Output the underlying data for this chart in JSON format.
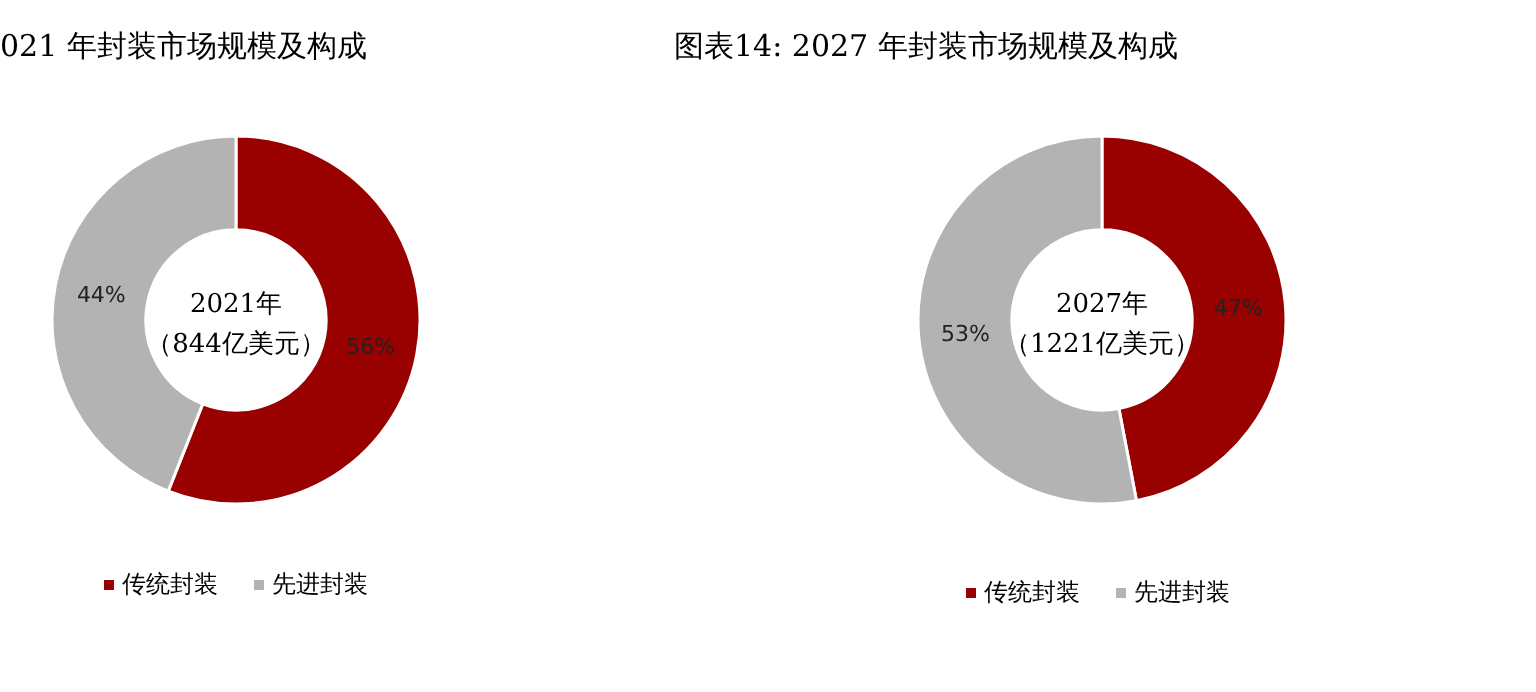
{
  "chart_data": [
    {
      "type": "donut",
      "title": "021 年封装市场规模及构成",
      "categories": [
        "传统封装",
        "先进封装"
      ],
      "values": [
        56,
        44
      ],
      "value_labels": [
        "56%",
        "44%"
      ],
      "colors": [
        "#990000",
        "#b3b3b3"
      ],
      "legend": "bottom",
      "annotations": [
        "2021年",
        "（844亿美元）"
      ]
    },
    {
      "type": "donut",
      "title": "图表14:  2027 年封装市场规模及构成",
      "categories": [
        "传统封装",
        "先进封装"
      ],
      "values": [
        47,
        53
      ],
      "value_labels": [
        "47%",
        "53%"
      ],
      "colors": [
        "#990000",
        "#b3b3b3"
      ],
      "legend": "bottom",
      "annotations": [
        "2027年",
        "（1221亿美元）"
      ]
    }
  ]
}
